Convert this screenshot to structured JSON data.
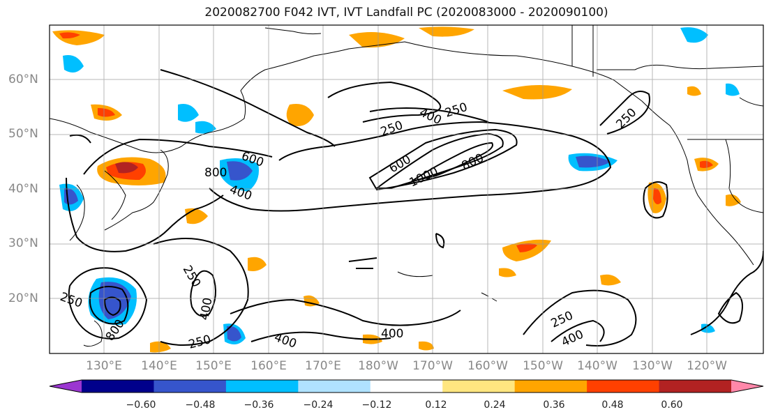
{
  "title": "2020082700 F042 IVT, IVT Landfall PC (2020083000 - 2020090100)",
  "lat_labels": [
    "60°N",
    "50°N",
    "40°N",
    "30°N",
    "20°N"
  ],
  "lon_labels": [
    "130°E",
    "140°E",
    "150°E",
    "160°E",
    "170°E",
    "180°W",
    "170°W",
    "160°W",
    "150°W",
    "140°W",
    "130°W",
    "120°W"
  ],
  "contour_labels": [
    "250",
    "400",
    "250",
    "600",
    "800",
    "1000",
    "800",
    "600",
    "400",
    "800",
    "250",
    "250",
    "250",
    "400",
    "250",
    "400",
    "400",
    "250",
    "400"
  ],
  "colorbar": {
    "ticks": [
      "−0.60",
      "−0.48",
      "−0.36",
      "−0.24",
      "−0.12",
      "0.12",
      "0.24",
      "0.36",
      "0.48",
      "0.60"
    ],
    "colors": [
      "#9b36d1",
      "#00008b",
      "#3655cc",
      "#00bfff",
      "#b0e2ff",
      "#ffffff",
      "#ffe680",
      "#ffa500",
      "#ff4000",
      "#b22222",
      "#ff88aa"
    ]
  }
}
